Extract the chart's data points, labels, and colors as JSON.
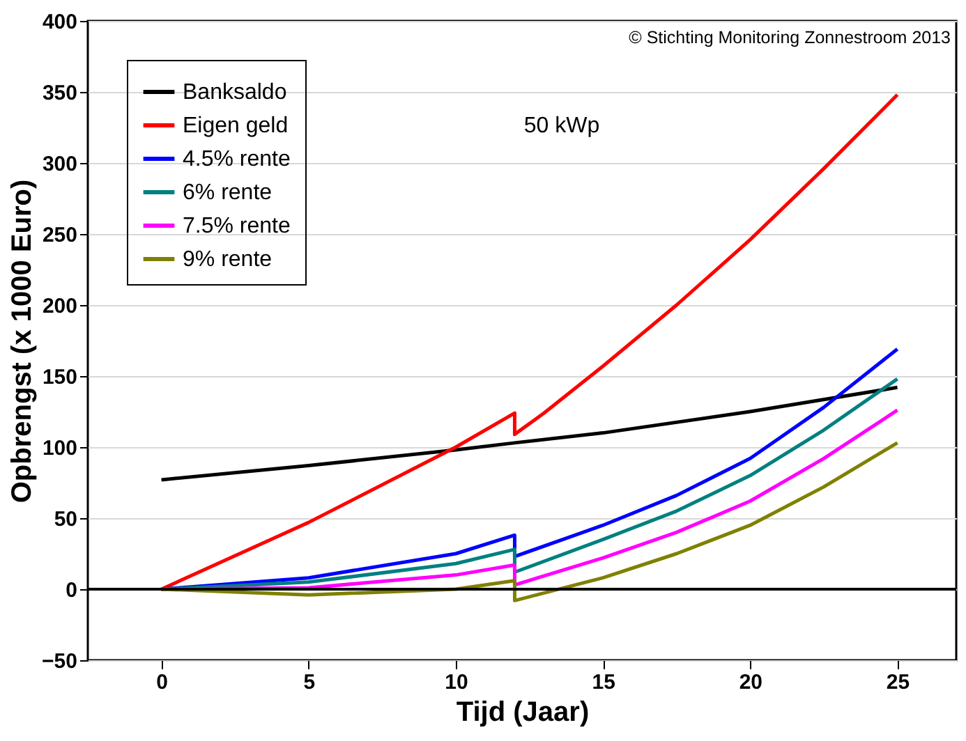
{
  "chart_data": {
    "type": "line",
    "xlabel": "Tijd (Jaar)",
    "ylabel": "Opbrengst (x 1000 Euro)",
    "annotations": [
      "© Stichting Monitoring Zonnestroom 2013",
      "50 kWp"
    ],
    "xlim": [
      -2.5,
      27
    ],
    "xticks": [
      0,
      5,
      10,
      15,
      20,
      25
    ],
    "ylim": [
      -50,
      400
    ],
    "yticks": [
      -50,
      0,
      50,
      100,
      150,
      200,
      250,
      300,
      350,
      400
    ],
    "grid": "y",
    "legend": "top left",
    "line_style": "solid",
    "marker": "none",
    "ref_lines": [
      {
        "axis": "y",
        "value": 0,
        "color": "#000000"
      }
    ],
    "series": [
      {
        "name": "Banksaldo",
        "color": "#000000",
        "x": [
          0,
          5,
          10,
          12,
          15,
          20,
          25
        ],
        "values": [
          77,
          87,
          98,
          103,
          110,
          125,
          142
        ]
      },
      {
        "name": "Eigen geld",
        "color": "#ff0000",
        "x": [
          0,
          5,
          10,
          12,
          12,
          13,
          15,
          17.5,
          20,
          22.5,
          25
        ],
        "values": [
          0,
          47,
          100,
          124,
          109,
          124,
          157,
          200,
          246,
          296,
          348
        ]
      },
      {
        "name": "4.5% rente",
        "color": "#0000ff",
        "x": [
          0,
          5,
          10,
          12,
          12,
          15,
          17.5,
          20,
          22.5,
          25
        ],
        "values": [
          0,
          8,
          25,
          38,
          23,
          45,
          66,
          92,
          128,
          169
        ]
      },
      {
        "name": "6% rente",
        "color": "#008080",
        "x": [
          0,
          5,
          10,
          12,
          12,
          15,
          17.5,
          20,
          22.5,
          25
        ],
        "values": [
          0,
          5,
          18,
          28,
          12,
          35,
          55,
          80,
          112,
          148
        ]
      },
      {
        "name": "7.5% rente",
        "color": "#ff00ff",
        "x": [
          0,
          5,
          10,
          12,
          12,
          15,
          17.5,
          20,
          22.5,
          25
        ],
        "values": [
          0,
          1,
          10,
          17,
          3,
          22,
          40,
          62,
          92,
          126
        ]
      },
      {
        "name": "9% rente",
        "color": "#808000",
        "x": [
          0,
          5,
          10,
          12,
          12,
          15,
          17.5,
          20,
          22.5,
          25
        ],
        "values": [
          0,
          -4,
          0,
          6,
          -8,
          8,
          25,
          45,
          72,
          103
        ]
      }
    ]
  }
}
